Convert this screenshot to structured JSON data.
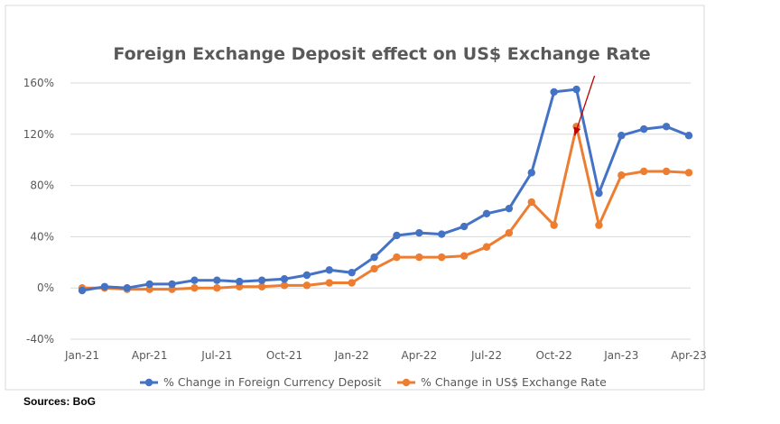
{
  "source": "Sources: BoG",
  "chart_data": {
    "type": "line",
    "title": "Foreign Exchange Deposit effect on US$ Exchange Rate",
    "xlabel": "",
    "ylabel": "",
    "ylim": [
      -40,
      160
    ],
    "y_ticks": [
      "160%",
      "120%",
      "80%",
      "40%",
      "0%",
      "-40%"
    ],
    "y_tick_values": [
      160,
      120,
      80,
      40,
      0,
      -40
    ],
    "grid": "horizontal",
    "legend_position": "bottom",
    "x": [
      "Jan-21",
      "Feb-21",
      "Mar-21",
      "Apr-21",
      "May-21",
      "Jun-21",
      "Jul-21",
      "Aug-21",
      "Sep-21",
      "Oct-21",
      "Nov-21",
      "Dec-21",
      "Jan-22",
      "Feb-22",
      "Mar-22",
      "Apr-22",
      "May-22",
      "Jun-22",
      "Jul-22",
      "Aug-22",
      "Sep-22",
      "Oct-22",
      "Nov-22",
      "Dec-22",
      "Jan-23",
      "Feb-23",
      "Mar-23",
      "Apr-23"
    ],
    "x_tick_labels": [
      "Jan-21",
      "Apr-21",
      "Jul-21",
      "Oct-21",
      "Jan-22",
      "Apr-22",
      "Jul-22",
      "Oct-22",
      "Jan-23",
      "Apr-23"
    ],
    "series": [
      {
        "name": "% Change in Foreign Currency Deposit",
        "color": "#4472C4",
        "values": [
          -2,
          1,
          0,
          3,
          3,
          6,
          6,
          5,
          6,
          7,
          10,
          14,
          12,
          24,
          41,
          43,
          42,
          48,
          58,
          62,
          90,
          153,
          155,
          74,
          119,
          124,
          126,
          119
        ]
      },
      {
        "name": "% Change in US$ Exchange Rate",
        "color": "#ED7D31",
        "values": [
          0,
          0,
          -1,
          -1,
          -1,
          0,
          0,
          1,
          1,
          2,
          2,
          4,
          4,
          15,
          24,
          24,
          24,
          25,
          32,
          43,
          67,
          49,
          126,
          49,
          88,
          91,
          91,
          90
        ]
      }
    ],
    "annotation": {
      "type": "arrow",
      "color": "#C00000",
      "target_index": 22,
      "target_series": 1
    }
  }
}
